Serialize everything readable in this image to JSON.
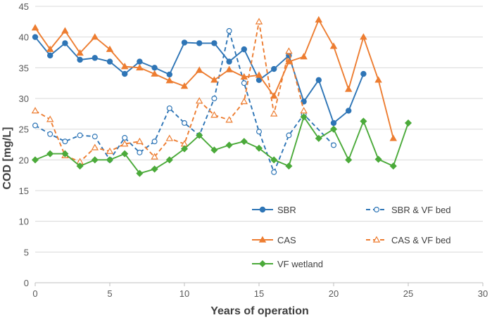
{
  "chart_data": {
    "type": "line",
    "title": "",
    "xlabel": "Years of operation",
    "ylabel": "COD [mg/L]",
    "xlim": [
      0,
      30
    ],
    "ylim": [
      0,
      45
    ],
    "xticks": [
      0,
      5,
      10,
      15,
      20,
      25,
      30
    ],
    "yticks": [
      0,
      5,
      10,
      15,
      20,
      25,
      30,
      35,
      40,
      45
    ],
    "grid": "horizontal",
    "legend_position": "bottom-right",
    "series": [
      {
        "name": "SBR",
        "color": "#2E75B6",
        "dashed": false,
        "marker": "circle-filled",
        "points": [
          [
            0,
            40
          ],
          [
            1,
            37
          ],
          [
            2,
            39
          ],
          [
            3,
            36.3
          ],
          [
            4,
            36.6
          ],
          [
            5,
            36
          ],
          [
            6,
            34
          ],
          [
            7,
            36
          ],
          [
            8,
            35
          ],
          [
            9,
            33.9
          ],
          [
            10,
            39.1
          ],
          [
            11,
            39
          ],
          [
            12,
            39
          ],
          [
            13,
            36
          ],
          [
            14,
            38
          ],
          [
            15,
            33
          ],
          [
            16,
            34.8
          ],
          [
            17,
            37
          ],
          [
            18,
            29.5
          ],
          [
            19,
            33
          ],
          [
            20,
            26
          ],
          [
            21,
            28
          ],
          [
            22,
            34
          ]
        ]
      },
      {
        "name": "SBR & VF bed",
        "color": "#2E75B6",
        "dashed": true,
        "marker": "circle-open",
        "points": [
          [
            0,
            25.6
          ],
          [
            1,
            24.2
          ],
          [
            2,
            23
          ],
          [
            3,
            24
          ],
          [
            4,
            23.8
          ],
          [
            5,
            20
          ],
          [
            6,
            23.6
          ],
          [
            7,
            21.2
          ],
          [
            8,
            23
          ],
          [
            9,
            28.4
          ],
          [
            10,
            26
          ],
          [
            11,
            24
          ],
          [
            12,
            30
          ],
          [
            13,
            41
          ],
          [
            14,
            32.5
          ],
          [
            15,
            24.6
          ],
          [
            16,
            18
          ],
          [
            17,
            24
          ],
          [
            18,
            27.4
          ],
          [
            20,
            22.4
          ]
        ]
      },
      {
        "name": "CAS",
        "color": "#ED7D31",
        "dashed": false,
        "marker": "triangle-filled",
        "points": [
          [
            0,
            41.5
          ],
          [
            1,
            38
          ],
          [
            2,
            41
          ],
          [
            3,
            37.4
          ],
          [
            4,
            40
          ],
          [
            5,
            38
          ],
          [
            6,
            35.2
          ],
          [
            7,
            35
          ],
          [
            8,
            34
          ],
          [
            9,
            32.9
          ],
          [
            10,
            32
          ],
          [
            11,
            34.6
          ],
          [
            12,
            33
          ],
          [
            13,
            34.7
          ],
          [
            14,
            33.5
          ],
          [
            15,
            33.8
          ],
          [
            16,
            30.4
          ],
          [
            17,
            36
          ],
          [
            18,
            36.8
          ],
          [
            19,
            42.8
          ],
          [
            20,
            38.5
          ],
          [
            21,
            31.5
          ],
          [
            22,
            40
          ],
          [
            23,
            33
          ],
          [
            24,
            23.5
          ]
        ]
      },
      {
        "name": "CAS & VF bed",
        "color": "#ED7D31",
        "dashed": true,
        "marker": "triangle-open",
        "points": [
          [
            0,
            28
          ],
          [
            1,
            26.6
          ],
          [
            2,
            20.7
          ],
          [
            3,
            19.7
          ],
          [
            4,
            22
          ],
          [
            5,
            21.4
          ],
          [
            6,
            22.6
          ],
          [
            7,
            23
          ],
          [
            8,
            20.5
          ],
          [
            9,
            23.5
          ],
          [
            10,
            22.6
          ],
          [
            11,
            29.6
          ],
          [
            12,
            27.3
          ],
          [
            13,
            26.5
          ],
          [
            14,
            29.5
          ],
          [
            15,
            42.5
          ],
          [
            16,
            27.5
          ],
          [
            17,
            37.7
          ],
          [
            18,
            28
          ]
        ]
      },
      {
        "name": "VF wetland",
        "color": "#4BAA3A",
        "dashed": false,
        "marker": "diamond-filled",
        "points": [
          [
            0,
            20
          ],
          [
            1,
            21
          ],
          [
            2,
            21
          ],
          [
            3,
            19
          ],
          [
            4,
            20
          ],
          [
            5,
            20
          ],
          [
            6,
            21
          ],
          [
            7,
            17.8
          ],
          [
            8,
            18.5
          ],
          [
            9,
            20
          ],
          [
            10,
            21.8
          ],
          [
            11,
            24
          ],
          [
            12,
            21.6
          ],
          [
            13,
            22.4
          ],
          [
            14,
            23
          ],
          [
            15,
            21.9
          ],
          [
            16,
            20
          ],
          [
            17,
            19
          ],
          [
            18,
            27
          ],
          [
            19,
            23.5
          ],
          [
            20,
            25
          ],
          [
            21,
            20
          ],
          [
            22,
            26.3
          ],
          [
            23,
            20.1
          ],
          [
            24,
            19
          ],
          [
            25,
            26
          ]
        ]
      }
    ]
  }
}
